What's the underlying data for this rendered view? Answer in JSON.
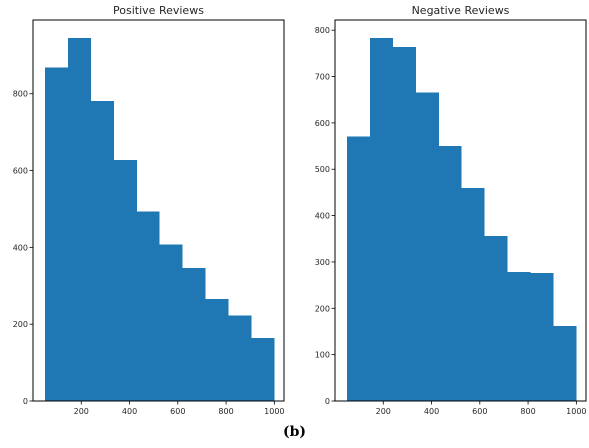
{
  "caption": "(b)",
  "colors": {
    "bar": "#1f77b4",
    "axis": "#000000",
    "text": "#262626"
  },
  "chart_data": [
    {
      "type": "bar",
      "histogram": true,
      "title": "Positive Reviews",
      "xlabel": "",
      "ylabel": "",
      "bin_edges": [
        50,
        145,
        240,
        335,
        430,
        525,
        620,
        715,
        810,
        905,
        1000
      ],
      "values": [
        868,
        945,
        781,
        628,
        494,
        408,
        346,
        265,
        222,
        164
      ],
      "xlim": [
        0,
        1040
      ],
      "ylim": [
        0,
        992
      ],
      "xticks": [
        200,
        400,
        600,
        800,
        1000
      ],
      "yticks": [
        0,
        200,
        400,
        600,
        800
      ],
      "grid": false,
      "legend": "none"
    },
    {
      "type": "bar",
      "histogram": true,
      "title": "Negative Reviews",
      "xlabel": "",
      "ylabel": "",
      "bin_edges": [
        50,
        145,
        240,
        335,
        430,
        525,
        620,
        715,
        810,
        905,
        1000
      ],
      "values": [
        571,
        783,
        764,
        666,
        550,
        460,
        356,
        278,
        276,
        162
      ],
      "xlim": [
        0,
        1040
      ],
      "ylim": [
        0,
        822
      ],
      "xticks": [
        200,
        400,
        600,
        800,
        1000
      ],
      "yticks": [
        0,
        100,
        200,
        300,
        400,
        500,
        600,
        700,
        800
      ],
      "grid": false,
      "legend": "none"
    }
  ]
}
